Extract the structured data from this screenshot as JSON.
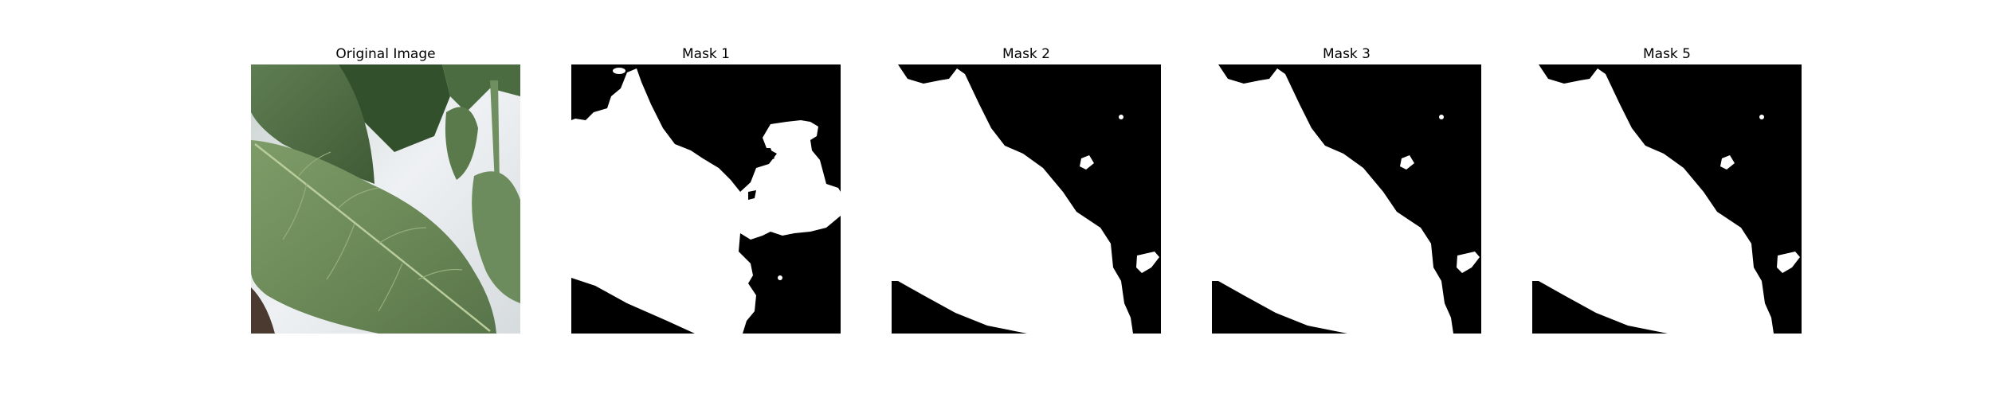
{
  "figure": {
    "panels": [
      {
        "title": "Original Image",
        "kind": "photo"
      },
      {
        "title": "Mask 1",
        "kind": "mask"
      },
      {
        "title": "Mask 2",
        "kind": "mask"
      },
      {
        "title": "Mask 3",
        "kind": "mask"
      },
      {
        "title": "Mask 5",
        "kind": "mask"
      }
    ]
  },
  "colors": {
    "background": "#ffffff",
    "mask_background": "#000000",
    "mask_foreground": "#ffffff",
    "leaf_main": "#6f8f5a",
    "leaf_dark": "#3f5b36",
    "sky_light": "#e6ebee"
  }
}
